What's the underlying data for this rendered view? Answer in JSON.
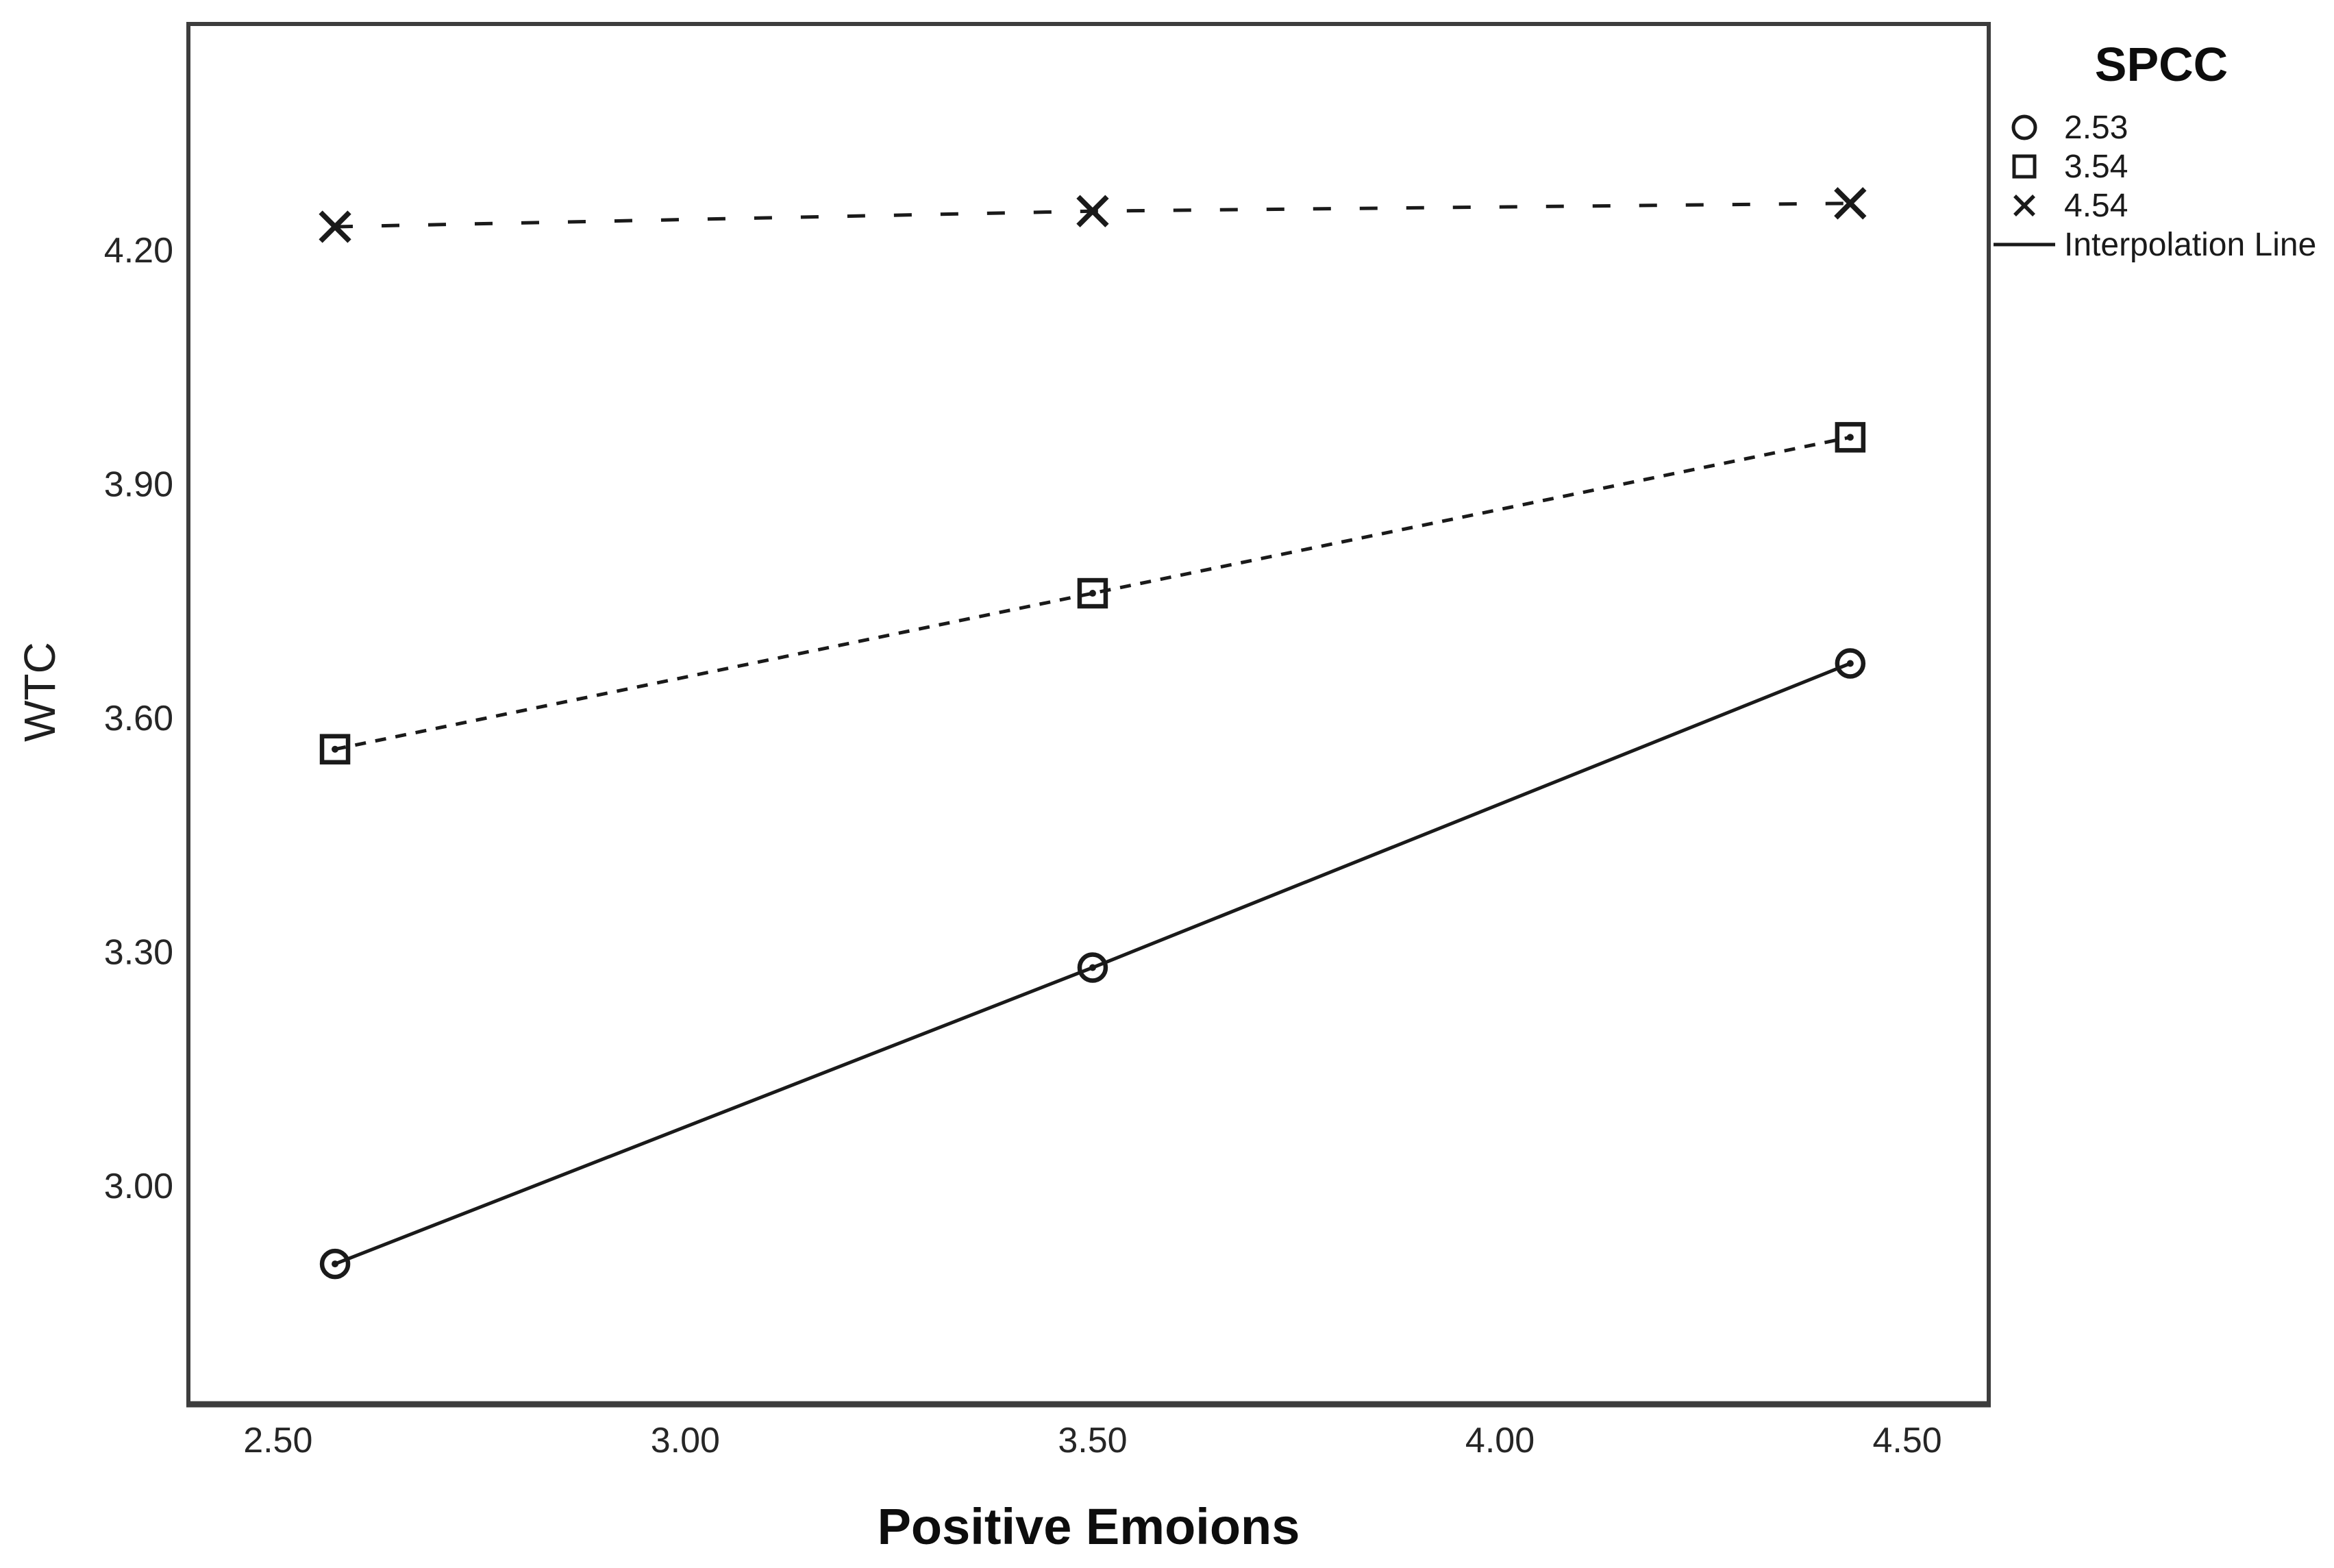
{
  "chart": {
    "background_color": "#ffffff",
    "frame_color": "#3d3d3d",
    "series_color": "#1a1a1a",
    "text_color": "#262626"
  },
  "chart_data": {
    "type": "line",
    "title": "",
    "xlabel": "Positive Emoions",
    "ylabel": "WTC",
    "xlim": [
      2.39,
      4.6
    ],
    "ylim": [
      2.72,
      4.49
    ],
    "grid": false,
    "x_tick_values": [
      2.5,
      3.0,
      3.5,
      4.0,
      4.5
    ],
    "x_tick_labels": [
      "2.50",
      "3.00",
      "3.50",
      "4.00",
      "4.50"
    ],
    "y_tick_values": [
      3.0,
      3.3,
      3.6,
      3.9,
      4.2
    ],
    "y_tick_labels": [
      "3.00",
      "3.30",
      "3.60",
      "3.90",
      "4.20"
    ],
    "x": [
      2.57,
      3.5,
      4.43
    ],
    "series": [
      {
        "name": "2.53",
        "marker": "circle",
        "marker_icon": "circle-marker-icon",
        "line_style": "solid",
        "values": [
          2.9,
          3.28,
          3.67
        ]
      },
      {
        "name": "3.54",
        "marker": "square",
        "marker_icon": "square-marker-icon",
        "line_style": "dashed-fine",
        "values": [
          3.56,
          3.76,
          3.96
        ]
      },
      {
        "name": "4.54",
        "marker": "x",
        "marker_icon": "x-marker-icon",
        "line_style": "dashed-wide",
        "values": [
          4.23,
          4.25,
          4.26
        ]
      }
    ],
    "legend": {
      "title": "SPCC",
      "position": "top-right-outside",
      "entries": [
        "2.53",
        "3.54",
        "4.54",
        "Interpolation Line"
      ],
      "interpolation_label": "Interpolation Line",
      "interpolation_line_style": "solid"
    }
  }
}
